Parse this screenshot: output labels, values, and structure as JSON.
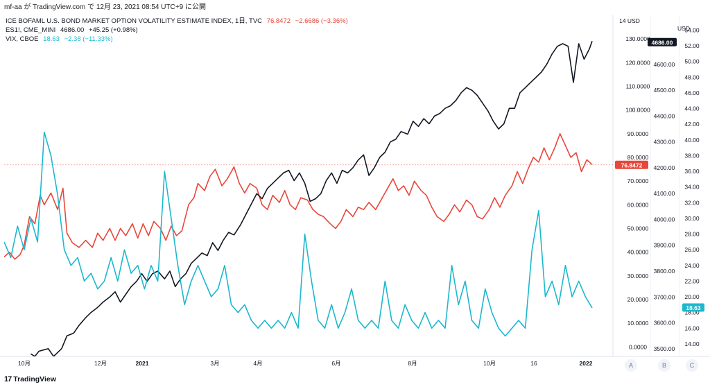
{
  "caption": "mf-aa が TradingView.com で 12月 23, 2021 08:54 UTC+9 に公開",
  "legend": [
    {
      "name": "ICE BOFAML U.S. BOND MARKET OPTION VOLATILITY ESTIMATE INDEX, 1日, TVC",
      "value": "76.8472",
      "change": "−2.6686 (−3.36%)",
      "color": "#e8473b"
    },
    {
      "name": "ES1!, CME_MINI",
      "value": "4686.00",
      "change": "+45.25 (+0.98%)",
      "color": "#131722"
    },
    {
      "name": "VIX, CBOE",
      "value": "18.63",
      "change": "−2.38 (−11.33%)",
      "color": "#1cb8ce"
    }
  ],
  "footer": {
    "logo_mark": "17",
    "logo_text": "TradingView"
  },
  "scale_buttons": [
    "A",
    "B",
    "C"
  ],
  "currency_label_a": "14 USD",
  "currency_label_c": "USD",
  "chart_data": {
    "type": "line",
    "x_axis": {
      "labels": [
        "10月",
        "12月",
        "2021",
        "3月",
        "4月",
        "6月",
        "8月",
        "10月",
        "16",
        "2022"
      ]
    },
    "axes": {
      "move": {
        "ticks": [
          "130.0000",
          "120.0000",
          "110.0000",
          "100.0000",
          "90.0000",
          "80.0000",
          "70.0000",
          "60.0000",
          "50.0000",
          "40.0000",
          "30.0000",
          "20.0000",
          "10.0000",
          "0.0000"
        ],
        "range": [
          -4,
          140
        ]
      },
      "es": {
        "ticks": [
          "4600.00",
          "4500.00",
          "4400.00",
          "4300.00",
          "4200.00",
          "4100.00",
          "4000.00",
          "3900.00",
          "3800.00",
          "3700.00",
          "3600.00",
          "3500.00"
        ],
        "range": [
          3470,
          4790
        ]
      },
      "vix": {
        "ticks": [
          "54.00",
          "52.00",
          "50.00",
          "48.00",
          "46.00",
          "44.00",
          "42.00",
          "40.00",
          "38.00",
          "36.00",
          "34.00",
          "32.00",
          "30.00",
          "28.00",
          "26.00",
          "24.00",
          "22.00",
          "20.00",
          "18.00",
          "16.00",
          "14.00"
        ],
        "range": [
          12.4,
          55.9
        ]
      }
    },
    "last_labels": {
      "move": "76.8472",
      "es": "4686.00",
      "vix": "18.63"
    },
    "series": [
      {
        "name": "ICE BOFAML U.S. BOND MARKET OPTION VOLATILITY ESTIMATE INDEX",
        "axis": "move",
        "color": "#e8473b",
        "points": [
          [
            0,
            38
          ],
          [
            4,
            40
          ],
          [
            8,
            37
          ],
          [
            12,
            39
          ],
          [
            15,
            43
          ],
          [
            19,
            55
          ],
          [
            23,
            52
          ],
          [
            27,
            64
          ],
          [
            30,
            60
          ],
          [
            35,
            65
          ],
          [
            40,
            58
          ],
          [
            44,
            67
          ],
          [
            47,
            48
          ],
          [
            51,
            44
          ],
          [
            56,
            42
          ],
          [
            61,
            45
          ],
          [
            66,
            42
          ],
          [
            70,
            48
          ],
          [
            74,
            45
          ],
          [
            79,
            50
          ],
          [
            83,
            45
          ],
          [
            87,
            50
          ],
          [
            91,
            47
          ],
          [
            96,
            52
          ],
          [
            100,
            46
          ],
          [
            104,
            52
          ],
          [
            108,
            47
          ],
          [
            112,
            53
          ],
          [
            117,
            50
          ],
          [
            121,
            45
          ],
          [
            125,
            51
          ],
          [
            129,
            47
          ],
          [
            133,
            49
          ],
          [
            138,
            60
          ],
          [
            142,
            63
          ],
          [
            145,
            69
          ],
          [
            150,
            66
          ],
          [
            154,
            72
          ],
          [
            158,
            75
          ],
          [
            163,
            68
          ],
          [
            167,
            71
          ],
          [
            172,
            76
          ],
          [
            176,
            69
          ],
          [
            180,
            65
          ],
          [
            184,
            69
          ],
          [
            189,
            67
          ],
          [
            193,
            60
          ],
          [
            197,
            58
          ],
          [
            201,
            64
          ],
          [
            206,
            61
          ],
          [
            210,
            66
          ],
          [
            214,
            60
          ],
          [
            218,
            58
          ],
          [
            222,
            63
          ],
          [
            227,
            62
          ],
          [
            231,
            58
          ],
          [
            235,
            56
          ],
          [
            239,
            55
          ],
          [
            244,
            52
          ],
          [
            248,
            50
          ],
          [
            252,
            53
          ],
          [
            256,
            58
          ],
          [
            261,
            55
          ],
          [
            265,
            59
          ],
          [
            269,
            58
          ],
          [
            273,
            61
          ],
          [
            278,
            58
          ],
          [
            282,
            62
          ],
          [
            286,
            66
          ],
          [
            291,
            71
          ],
          [
            295,
            66
          ],
          [
            299,
            68
          ],
          [
            303,
            64
          ],
          [
            307,
            70
          ],
          [
            312,
            66
          ],
          [
            316,
            64
          ],
          [
            320,
            59
          ],
          [
            324,
            55
          ],
          [
            329,
            53
          ],
          [
            333,
            56
          ],
          [
            337,
            60
          ],
          [
            341,
            57
          ],
          [
            346,
            62
          ],
          [
            350,
            60
          ],
          [
            354,
            55
          ],
          [
            358,
            54
          ],
          [
            363,
            58
          ],
          [
            367,
            63
          ],
          [
            371,
            59
          ],
          [
            375,
            64
          ],
          [
            380,
            68
          ],
          [
            384,
            74
          ],
          [
            388,
            69
          ],
          [
            392,
            75
          ],
          [
            396,
            80
          ],
          [
            400,
            78
          ],
          [
            404,
            84
          ],
          [
            408,
            79
          ],
          [
            412,
            84
          ],
          [
            416,
            90
          ],
          [
            420,
            85
          ],
          [
            424,
            80
          ],
          [
            428,
            82
          ],
          [
            432,
            74
          ],
          [
            436,
            79
          ],
          [
            440,
            77
          ]
        ]
      },
      {
        "name": "ES1!, CME_MINI",
        "axis": "es",
        "color": "#131722",
        "points": [
          [
            20,
            3480
          ],
          [
            23,
            3470
          ],
          [
            26,
            3490
          ],
          [
            33,
            3500
          ],
          [
            37,
            3470
          ],
          [
            43,
            3500
          ],
          [
            47,
            3550
          ],
          [
            52,
            3560
          ],
          [
            56,
            3590
          ],
          [
            61,
            3620
          ],
          [
            65,
            3640
          ],
          [
            70,
            3660
          ],
          [
            74,
            3680
          ],
          [
            79,
            3700
          ],
          [
            83,
            3720
          ],
          [
            87,
            3680
          ],
          [
            91,
            3710
          ],
          [
            95,
            3740
          ],
          [
            99,
            3760
          ],
          [
            103,
            3790
          ],
          [
            107,
            3760
          ],
          [
            111,
            3790
          ],
          [
            115,
            3800
          ],
          [
            120,
            3770
          ],
          [
            124,
            3800
          ],
          [
            128,
            3740
          ],
          [
            132,
            3770
          ],
          [
            136,
            3790
          ],
          [
            140,
            3830
          ],
          [
            144,
            3850
          ],
          [
            148,
            3870
          ],
          [
            152,
            3860
          ],
          [
            156,
            3910
          ],
          [
            160,
            3880
          ],
          [
            164,
            3920
          ],
          [
            168,
            3950
          ],
          [
            172,
            3940
          ],
          [
            177,
            3980
          ],
          [
            181,
            4020
          ],
          [
            185,
            4060
          ],
          [
            189,
            4100
          ],
          [
            193,
            4080
          ],
          [
            197,
            4120
          ],
          [
            201,
            4140
          ],
          [
            205,
            4160
          ],
          [
            209,
            4180
          ],
          [
            213,
            4190
          ],
          [
            217,
            4150
          ],
          [
            221,
            4180
          ],
          [
            225,
            4140
          ],
          [
            229,
            4070
          ],
          [
            233,
            4080
          ],
          [
            237,
            4100
          ],
          [
            241,
            4150
          ],
          [
            245,
            4180
          ],
          [
            249,
            4140
          ],
          [
            253,
            4190
          ],
          [
            257,
            4180
          ],
          [
            261,
            4200
          ],
          [
            265,
            4230
          ],
          [
            269,
            4250
          ],
          [
            273,
            4170
          ],
          [
            277,
            4200
          ],
          [
            281,
            4240
          ],
          [
            285,
            4260
          ],
          [
            289,
            4300
          ],
          [
            293,
            4310
          ],
          [
            297,
            4340
          ],
          [
            302,
            4330
          ],
          [
            306,
            4380
          ],
          [
            310,
            4360
          ],
          [
            314,
            4390
          ],
          [
            318,
            4370
          ],
          [
            322,
            4400
          ],
          [
            326,
            4410
          ],
          [
            330,
            4430
          ],
          [
            334,
            4440
          ],
          [
            338,
            4460
          ],
          [
            342,
            4490
          ],
          [
            346,
            4510
          ],
          [
            350,
            4500
          ],
          [
            354,
            4480
          ],
          [
            358,
            4450
          ],
          [
            362,
            4420
          ],
          [
            366,
            4380
          ],
          [
            370,
            4350
          ],
          [
            374,
            4370
          ],
          [
            378,
            4430
          ],
          [
            382,
            4430
          ],
          [
            386,
            4490
          ],
          [
            390,
            4510
          ],
          [
            394,
            4530
          ],
          [
            398,
            4550
          ],
          [
            402,
            4570
          ],
          [
            406,
            4600
          ],
          [
            410,
            4640
          ],
          [
            414,
            4670
          ],
          [
            418,
            4680
          ],
          [
            422,
            4670
          ],
          [
            426,
            4530
          ],
          [
            430,
            4680
          ],
          [
            434,
            4620
          ],
          [
            438,
            4660
          ],
          [
            440,
            4690
          ]
        ]
      },
      {
        "name": "VIX, CBOE",
        "axis": "vix",
        "color": "#1cb8ce",
        "points": [
          [
            0,
            27
          ],
          [
            5,
            25
          ],
          [
            10,
            29
          ],
          [
            15,
            26
          ],
          [
            20,
            30
          ],
          [
            25,
            27
          ],
          [
            30,
            41
          ],
          [
            35,
            38
          ],
          [
            40,
            33
          ],
          [
            45,
            26
          ],
          [
            50,
            24
          ],
          [
            55,
            25
          ],
          [
            60,
            22
          ],
          [
            65,
            23
          ],
          [
            70,
            21
          ],
          [
            75,
            22
          ],
          [
            80,
            25
          ],
          [
            85,
            22
          ],
          [
            90,
            26
          ],
          [
            95,
            23
          ],
          [
            100,
            24
          ],
          [
            105,
            21
          ],
          [
            110,
            24
          ],
          [
            115,
            22
          ],
          [
            120,
            36
          ],
          [
            125,
            30
          ],
          [
            130,
            24
          ],
          [
            135,
            19
          ],
          [
            140,
            22
          ],
          [
            145,
            24
          ],
          [
            150,
            22
          ],
          [
            155,
            20
          ],
          [
            160,
            21
          ],
          [
            165,
            24
          ],
          [
            170,
            19
          ],
          [
            175,
            18
          ],
          [
            180,
            19
          ],
          [
            185,
            17
          ],
          [
            190,
            16
          ],
          [
            195,
            17
          ],
          [
            200,
            16
          ],
          [
            205,
            17
          ],
          [
            210,
            16
          ],
          [
            215,
            18
          ],
          [
            220,
            16
          ],
          [
            225,
            28
          ],
          [
            230,
            22
          ],
          [
            235,
            17
          ],
          [
            240,
            16
          ],
          [
            245,
            19
          ],
          [
            250,
            16
          ],
          [
            255,
            18
          ],
          [
            260,
            21
          ],
          [
            265,
            17
          ],
          [
            270,
            16
          ],
          [
            275,
            17
          ],
          [
            280,
            16
          ],
          [
            285,
            22
          ],
          [
            290,
            17
          ],
          [
            295,
            16
          ],
          [
            300,
            19
          ],
          [
            305,
            17
          ],
          [
            310,
            16
          ],
          [
            315,
            18
          ],
          [
            320,
            16
          ],
          [
            325,
            17
          ],
          [
            330,
            16
          ],
          [
            335,
            24
          ],
          [
            340,
            19
          ],
          [
            345,
            22
          ],
          [
            350,
            17
          ],
          [
            355,
            16
          ],
          [
            360,
            21
          ],
          [
            365,
            18
          ],
          [
            370,
            16
          ],
          [
            375,
            15
          ],
          [
            380,
            16
          ],
          [
            385,
            17
          ],
          [
            390,
            16
          ],
          [
            395,
            26
          ],
          [
            400,
            31
          ],
          [
            405,
            20
          ],
          [
            410,
            22
          ],
          [
            415,
            19
          ],
          [
            420,
            24
          ],
          [
            425,
            20
          ],
          [
            430,
            22
          ],
          [
            435,
            20
          ],
          [
            440,
            18.6
          ]
        ]
      }
    ]
  }
}
